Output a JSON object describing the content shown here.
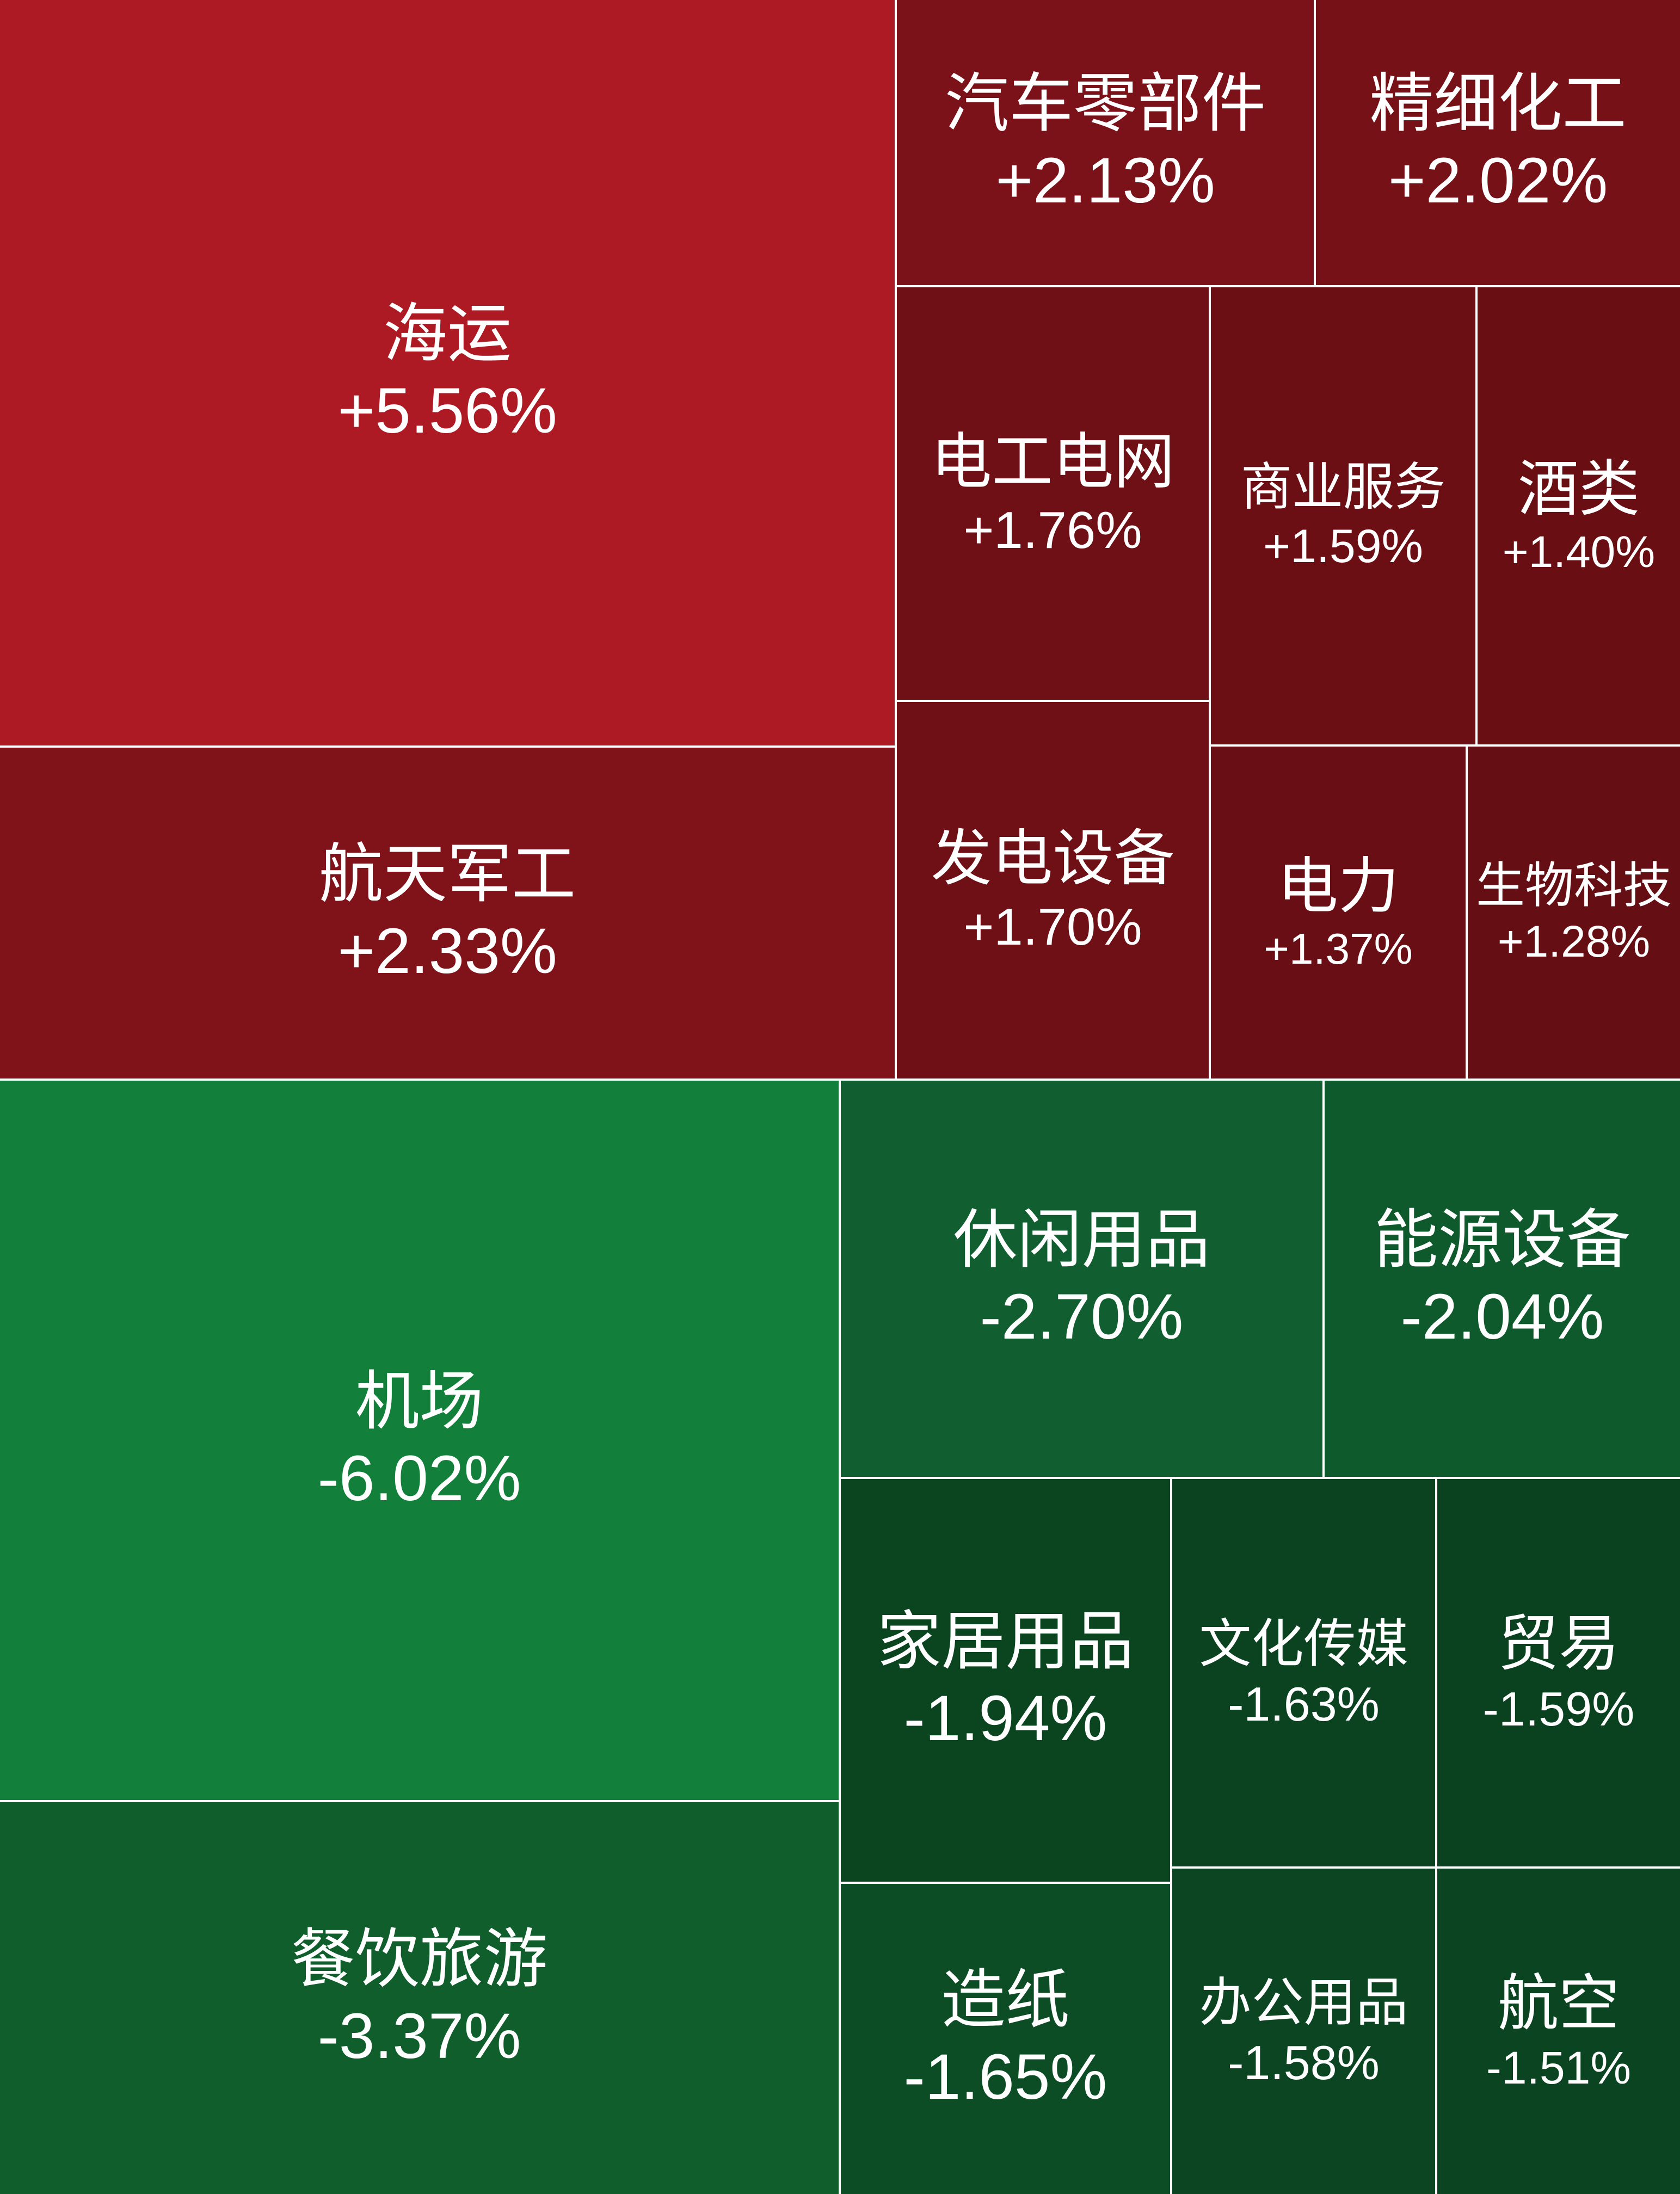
{
  "chart_data": {
    "type": "treemap",
    "colors": {
      "up_strong": "#ad1a24",
      "up": "#7f1218",
      "up_weak": "#6a0f14",
      "down_strong": "#12803b",
      "down": "#0f5e2c",
      "down_weak": "#0b4a22",
      "divider": "#ffffff"
    },
    "items": [
      {
        "name": "海运",
        "change": "+5.56%",
        "value": 5.56,
        "color": "#ad1a24"
      },
      {
        "name": "航天军工",
        "change": "+2.33%",
        "value": 2.33,
        "color": "#80121a"
      },
      {
        "name": "汽车零部件",
        "change": "+2.13%",
        "value": 2.13,
        "color": "#7b1219"
      },
      {
        "name": "精细化工",
        "change": "+2.02%",
        "value": 2.02,
        "color": "#771118"
      },
      {
        "name": "电工电网",
        "change": "+1.76%",
        "value": 1.76,
        "color": "#6f1016"
      },
      {
        "name": "商业服务",
        "change": "+1.59%",
        "value": 1.59,
        "color": "#6c0f15"
      },
      {
        "name": "酒类",
        "change": "+1.40%",
        "value": 1.4,
        "color": "#690f14"
      },
      {
        "name": "发电设备",
        "change": "+1.70%",
        "value": 1.7,
        "color": "#6e1016"
      },
      {
        "name": "电力",
        "change": "+1.37%",
        "value": 1.37,
        "color": "#680e14"
      },
      {
        "name": "生物科技",
        "change": "+1.28%",
        "value": 1.28,
        "color": "#650e13"
      },
      {
        "name": "机场",
        "change": "-6.02%",
        "value": -6.02,
        "color": "#12803b"
      },
      {
        "name": "休闲用品",
        "change": "-2.70%",
        "value": -2.7,
        "color": "#115f30"
      },
      {
        "name": "能源设备",
        "change": "-2.04%",
        "value": -2.04,
        "color": "#0f5a2d"
      },
      {
        "name": "家居用品",
        "change": "-1.94%",
        "value": -1.94,
        "color": "#0b4520"
      },
      {
        "name": "文化传媒",
        "change": "-1.63%",
        "value": -1.63,
        "color": "#0b4220"
      },
      {
        "name": "贸易",
        "change": "-1.59%",
        "value": -1.59,
        "color": "#0a411f"
      },
      {
        "name": "餐饮旅游",
        "change": "-3.37%",
        "value": -3.37,
        "color": "#0f5e2c"
      },
      {
        "name": "造纸",
        "change": "-1.65%",
        "value": -1.65,
        "color": "#0c4d25"
      },
      {
        "name": "办公用品",
        "change": "-1.58%",
        "value": -1.58,
        "color": "#0b4522"
      },
      {
        "name": "航空",
        "change": "-1.51%",
        "value": -1.51,
        "color": "#0b4421"
      }
    ]
  }
}
